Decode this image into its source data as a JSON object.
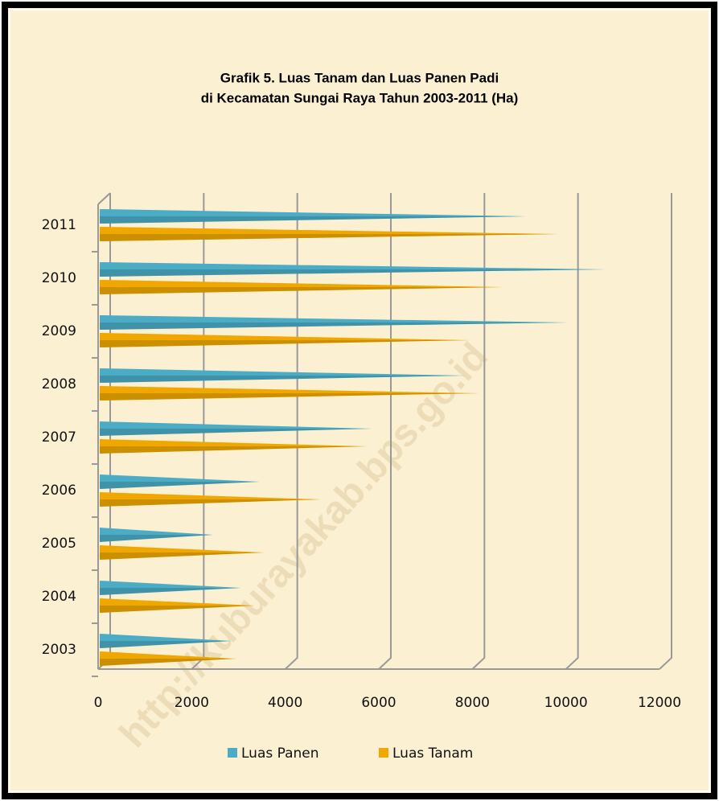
{
  "chart_data": {
    "type": "bar",
    "orientation": "horizontal",
    "title": [
      "Grafik 5. Luas Tanam dan Luas Panen Padi",
      "di Kecamatan Sungai Raya Tahun 2003-2011 (Ha)"
    ],
    "categories": [
      "2003",
      "2004",
      "2005",
      "2006",
      "2007",
      "2008",
      "2009",
      "2010",
      "2011"
    ],
    "series": [
      {
        "name": "Luas Panen",
        "color": "#4bacc6",
        "values": [
          2700,
          2900,
          2300,
          3300,
          5700,
          7700,
          9900,
          10700,
          9000
        ]
      },
      {
        "name": "Luas Tanam",
        "color": "#f0a800",
        "values": [
          2800,
          3200,
          3400,
          4600,
          5600,
          8000,
          7800,
          8500,
          9700
        ]
      }
    ],
    "xlim": [
      0,
      12000
    ],
    "xticks": [
      0,
      2000,
      4000,
      6000,
      8000,
      10000,
      12000
    ],
    "grid": true,
    "legend": "bottom",
    "watermark": "http://kuburayakab.bps.go.id"
  }
}
